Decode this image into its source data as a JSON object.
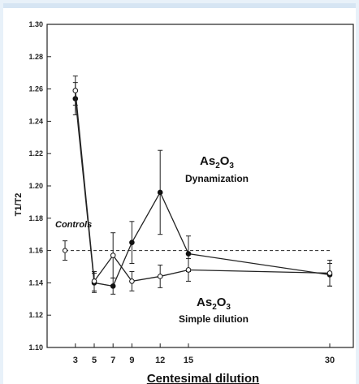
{
  "chart_data": {
    "type": "line",
    "xlabel": "Centesimal dilution",
    "ylabel": "T1/T2",
    "ylim": [
      1.1,
      1.3
    ],
    "yticks": [
      "1.10",
      "1.12",
      "1.14",
      "1.16",
      "1.18",
      "1.20",
      "1.22",
      "1.24",
      "1.26",
      "1.28",
      "1.30"
    ],
    "xticks": [
      3,
      5,
      7,
      9,
      12,
      15,
      30
    ],
    "control_level": 1.16,
    "controls_point": {
      "x": 1.9,
      "y": 1.16,
      "err": 0.006
    },
    "series": [
      {
        "marker": "filled",
        "points": [
          {
            "x": 3,
            "y": 1.254,
            "err": 0.01
          },
          {
            "x": 5,
            "y": 1.14,
            "err": 0.006
          },
          {
            "x": 7,
            "y": 1.138,
            "err": 0.005
          },
          {
            "x": 9,
            "y": 1.165,
            "err": 0.013
          },
          {
            "x": 12,
            "y": 1.196,
            "err": 0.026
          },
          {
            "x": 15,
            "y": 1.158,
            "err": 0.011
          },
          {
            "x": 30,
            "y": 1.145,
            "err": 0.007
          }
        ]
      },
      {
        "marker": "open",
        "points": [
          {
            "x": 3,
            "y": 1.259,
            "err": 0.009
          },
          {
            "x": 5,
            "y": 1.141,
            "err": 0.006
          },
          {
            "x": 7,
            "y": 1.157,
            "err": 0.014
          },
          {
            "x": 9,
            "y": 1.141,
            "err": 0.006
          },
          {
            "x": 12,
            "y": 1.144,
            "err": 0.007
          },
          {
            "x": 15,
            "y": 1.148,
            "err": 0.007
          },
          {
            "x": 30,
            "y": 1.146,
            "err": 0.008
          }
        ]
      }
    ],
    "annotations": {
      "controls": "Controls",
      "dyn_title_base": "As",
      "dyn_title_sub1": "2",
      "dyn_title_mid": "O",
      "dyn_title_sub2": "3",
      "dyn_label": "Dynamization",
      "simple_title_base": "As",
      "simple_title_sub1": "2",
      "simple_title_mid": "O",
      "simple_title_sub2": "3",
      "simple_label": "Simple dilution"
    }
  }
}
